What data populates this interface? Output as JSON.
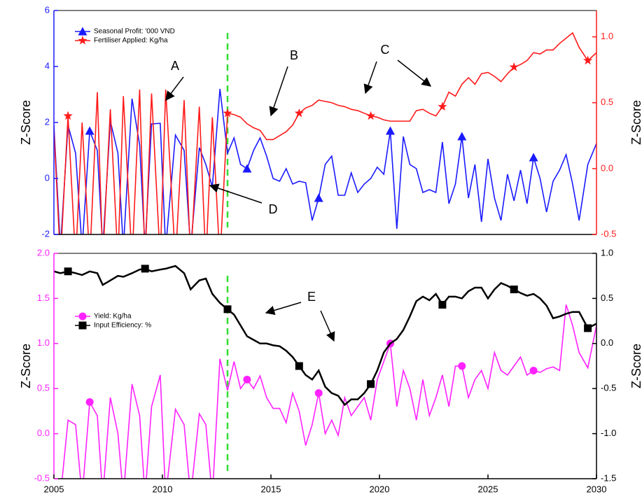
{
  "chart_data": [
    {
      "type": "line",
      "ylabel": "Z-Score",
      "y2label": "Z-Score",
      "xlim": [
        2005,
        2030
      ],
      "ylim": [
        -2,
        6
      ],
      "yticks": [
        -2,
        0,
        2,
        4,
        6
      ],
      "y2lim": [
        -0.5,
        1.2
      ],
      "y2ticks": [
        -0.5,
        {
          "value": 0,
          "label": "0.0"
        },
        0.5,
        {
          "value": 1,
          "label": "1.0"
        }
      ],
      "legend": "upper left",
      "reference_line": {
        "x": 2013,
        "color": "#33dd33"
      },
      "annotations": [
        {
          "text": "A"
        },
        {
          "text": "B"
        },
        {
          "text": "C"
        },
        {
          "text": "D"
        }
      ],
      "x": [
        2005.0,
        2005.3,
        2005.65,
        2006.0,
        2006.3,
        2006.65,
        2007.0,
        2007.25,
        2007.6,
        2007.95,
        2008.2,
        2008.6,
        2008.95,
        2009.2,
        2009.5,
        2009.9,
        2010.15,
        2010.6,
        2011.0,
        2011.3,
        2011.7,
        2012.0,
        2012.3,
        2012.65,
        2013.0,
        2013.3,
        2013.6,
        2013.9,
        2014.2,
        2014.5,
        2014.8,
        2015.1,
        2015.4,
        2015.7,
        2016.0,
        2016.3,
        2016.6,
        2016.9,
        2017.2,
        2017.5,
        2017.8,
        2018.1,
        2018.4,
        2018.7,
        2019.0,
        2019.3,
        2019.6,
        2019.9,
        2020.2,
        2020.5,
        2020.8,
        2021.1,
        2021.4,
        2021.7,
        2022.0,
        2022.3,
        2022.6,
        2022.9,
        2023.2,
        2023.5,
        2023.8,
        2024.1,
        2024.4,
        2024.7,
        2025.0,
        2025.3,
        2025.6,
        2025.9,
        2026.2,
        2026.5,
        2026.8,
        2027.1,
        2027.4,
        2027.7,
        2028.0,
        2028.3,
        2028.6,
        2028.9,
        2029.2,
        2029.6,
        2030.0
      ],
      "series": [
        {
          "name": "Seasonal Profit: '000 VND",
          "color": "#1a1aff",
          "axis": "y",
          "marker": "triangle",
          "values": [
            1.9,
            -2.5,
            1.9,
            0.9,
            -2.5,
            1.7,
            1.0,
            -2.5,
            2.05,
            0.9,
            -2.5,
            2.85,
            1.2,
            -2.5,
            1.95,
            1.97,
            -2.5,
            1.55,
            1.0,
            -2.5,
            1.1,
            0.5,
            -0.3,
            3.2,
            0.9,
            1.45,
            0.5,
            0.35,
            1.0,
            1.45,
            0.8,
            0.0,
            -0.1,
            0.35,
            -0.2,
            -0.1,
            -0.15,
            -1.5,
            -0.7,
            0.5,
            0.8,
            -0.6,
            -0.6,
            0.2,
            -0.5,
            -0.2,
            0.0,
            0.4,
            0.15,
            1.7,
            -1.8,
            1.5,
            0.5,
            0.35,
            -0.5,
            -0.4,
            -0.5,
            1.3,
            -0.9,
            -0.2,
            1.5,
            -0.7,
            0.5,
            -1.55,
            0.7,
            -0.7,
            -1.5,
            0.15,
            -0.8,
            0.3,
            -0.9,
            0.75,
            0.0,
            -1.2,
            -0.1,
            0.3,
            0.85,
            -0.2,
            -1.5,
            0.5,
            1.25
          ]
        },
        {
          "name": "Fertiliser Applied: Kg/ha",
          "color": "#ff1a1a",
          "axis": "y2",
          "marker": "star",
          "values": [
            0.3,
            -0.7,
            0.4,
            -0.7,
            0.35,
            -0.7,
            0.58,
            -0.7,
            0.45,
            -0.7,
            0.55,
            -0.7,
            0.6,
            -0.7,
            0.57,
            -0.7,
            0.6,
            -0.7,
            0.52,
            -0.7,
            0.47,
            -0.7,
            0.39,
            -0.7,
            0.42,
            0.41,
            0.39,
            0.34,
            0.31,
            0.29,
            0.22,
            0.22,
            0.25,
            0.28,
            0.33,
            0.42,
            0.46,
            0.48,
            0.52,
            0.51,
            0.5,
            0.48,
            0.47,
            0.45,
            0.44,
            0.42,
            0.4,
            0.39,
            0.37,
            0.36,
            0.36,
            0.36,
            0.36,
            0.44,
            0.45,
            0.42,
            0.4,
            0.47,
            0.58,
            0.55,
            0.64,
            0.69,
            0.64,
            0.72,
            0.73,
            0.7,
            0.66,
            0.72,
            0.77,
            0.79,
            0.82,
            0.88,
            0.87,
            0.9,
            0.9,
            0.95,
            0.99,
            1.03,
            0.92,
            0.82,
            0.88
          ]
        }
      ]
    },
    {
      "type": "line",
      "ylabel": "Z-Score",
      "y2label": "Z-Score",
      "xlim": [
        2005,
        2030
      ],
      "xticks": [
        2005,
        2010,
        2015,
        2020,
        2025,
        2030
      ],
      "ylim": [
        -0.5,
        2.0
      ],
      "yticks": [
        -0.5,
        {
          "value": 0,
          "label": "0.0"
        },
        0.5,
        {
          "value": 1,
          "label": "1.0"
        },
        1.5,
        {
          "value": 2,
          "label": "2.0"
        }
      ],
      "y2lim": [
        -1.5,
        1.0
      ],
      "y2ticks": [
        -1.5,
        {
          "value": -1,
          "label": "-1.0"
        },
        -0.5,
        {
          "value": 0,
          "label": "0.0"
        },
        0.5,
        {
          "value": 1,
          "label": "1.0"
        }
      ],
      "legend": "center left",
      "reference_line": {
        "x": 2013,
        "color": "#33dd33"
      },
      "annotations": [
        {
          "text": "E"
        }
      ],
      "x": [
        2005.0,
        2005.3,
        2005.65,
        2006.0,
        2006.3,
        2006.65,
        2007.0,
        2007.25,
        2007.6,
        2007.95,
        2008.2,
        2008.6,
        2008.95,
        2009.2,
        2009.5,
        2009.9,
        2010.15,
        2010.6,
        2011.0,
        2011.3,
        2011.7,
        2012.0,
        2012.3,
        2012.65,
        2013.0,
        2013.3,
        2013.6,
        2013.9,
        2014.2,
        2014.5,
        2014.8,
        2015.1,
        2015.4,
        2015.7,
        2016.0,
        2016.3,
        2016.6,
        2016.9,
        2017.2,
        2017.5,
        2017.8,
        2018.1,
        2018.4,
        2018.7,
        2019.0,
        2019.3,
        2019.6,
        2019.9,
        2020.2,
        2020.5,
        2020.8,
        2021.1,
        2021.4,
        2021.7,
        2022.0,
        2022.3,
        2022.6,
        2022.9,
        2023.2,
        2023.5,
        2023.8,
        2024.1,
        2024.4,
        2024.7,
        2025.0,
        2025.3,
        2025.6,
        2025.9,
        2026.2,
        2026.5,
        2026.8,
        2027.1,
        2027.4,
        2027.7,
        2028.0,
        2028.3,
        2028.6,
        2028.9,
        2029.2,
        2029.6,
        2030.0
      ],
      "series": [
        {
          "name": "Yield: Kg/ha",
          "color": "#ff22ff",
          "axis": "y",
          "marker": "circle",
          "values": [
            -0.6,
            -0.7,
            0.15,
            0.1,
            -0.7,
            0.35,
            0.2,
            -0.7,
            0.4,
            0.0,
            -0.7,
            0.55,
            0.2,
            -0.7,
            0.3,
            0.65,
            -0.7,
            0.27,
            0.1,
            -0.7,
            0.22,
            0.1,
            -0.7,
            0.83,
            0.48,
            0.8,
            0.5,
            0.6,
            0.5,
            0.64,
            0.4,
            0.28,
            0.28,
            0.12,
            0.45,
            0.25,
            -0.13,
            0.1,
            0.45,
            0.0,
            0.15,
            -0.02,
            0.4,
            0.2,
            0.3,
            0.4,
            0.15,
            0.6,
            0.8,
            1.0,
            0.3,
            0.7,
            0.5,
            0.15,
            0.6,
            0.2,
            0.4,
            0.65,
            0.3,
            0.75,
            0.75,
            0.4,
            0.6,
            0.7,
            0.5,
            0.9,
            0.7,
            0.65,
            0.75,
            0.85,
            0.65,
            0.7,
            0.68,
            0.72,
            0.74,
            0.7,
            1.43,
            1.2,
            0.9,
            0.73,
            1.2
          ]
        },
        {
          "name": "Input Efficiency: %",
          "color": "#000000",
          "axis": "y2",
          "marker": "square",
          "values": [
            0.8,
            0.78,
            0.8,
            0.78,
            0.76,
            0.8,
            0.78,
            0.65,
            0.7,
            0.75,
            0.74,
            0.78,
            0.82,
            0.83,
            0.8,
            0.82,
            0.83,
            0.86,
            0.78,
            0.6,
            0.7,
            0.72,
            0.55,
            0.45,
            0.38,
            0.32,
            0.2,
            0.08,
            0.04,
            0.0,
            0.0,
            -0.02,
            -0.03,
            -0.08,
            -0.15,
            -0.25,
            -0.35,
            -0.4,
            -0.3,
            -0.48,
            -0.55,
            -0.58,
            -0.68,
            -0.62,
            -0.62,
            -0.55,
            -0.45,
            -0.3,
            -0.1,
            0.0,
            0.05,
            0.15,
            0.3,
            0.47,
            0.52,
            0.48,
            0.55,
            0.43,
            0.52,
            0.52,
            0.5,
            0.58,
            0.62,
            0.62,
            0.5,
            0.6,
            0.67,
            0.64,
            0.6,
            0.56,
            0.53,
            0.55,
            0.5,
            0.42,
            0.28,
            0.3,
            0.33,
            0.35,
            0.35,
            0.17,
            0.22
          ]
        }
      ]
    }
  ]
}
